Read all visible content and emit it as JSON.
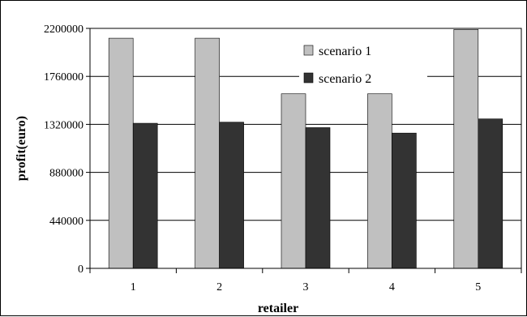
{
  "chart_data": {
    "type": "bar",
    "title": "",
    "xlabel": "retailer",
    "ylabel": "profit(euro)",
    "categories": [
      "1",
      "2",
      "3",
      "4",
      "5"
    ],
    "series": [
      {
        "name": "scenario 1",
        "color": "#c0c0c0",
        "values": [
          2110000,
          2110000,
          1600000,
          1600000,
          2190000
        ]
      },
      {
        "name": "scenario 2",
        "color": "#333333",
        "values": [
          1330000,
          1340000,
          1290000,
          1240000,
          1370000
        ]
      }
    ],
    "ylim": [
      0,
      2200000
    ],
    "yticks": [
      "0",
      "440000",
      "880000",
      "1320000",
      "1760000",
      "2200000"
    ],
    "grid": true,
    "legend_position": "top-right-inside"
  }
}
